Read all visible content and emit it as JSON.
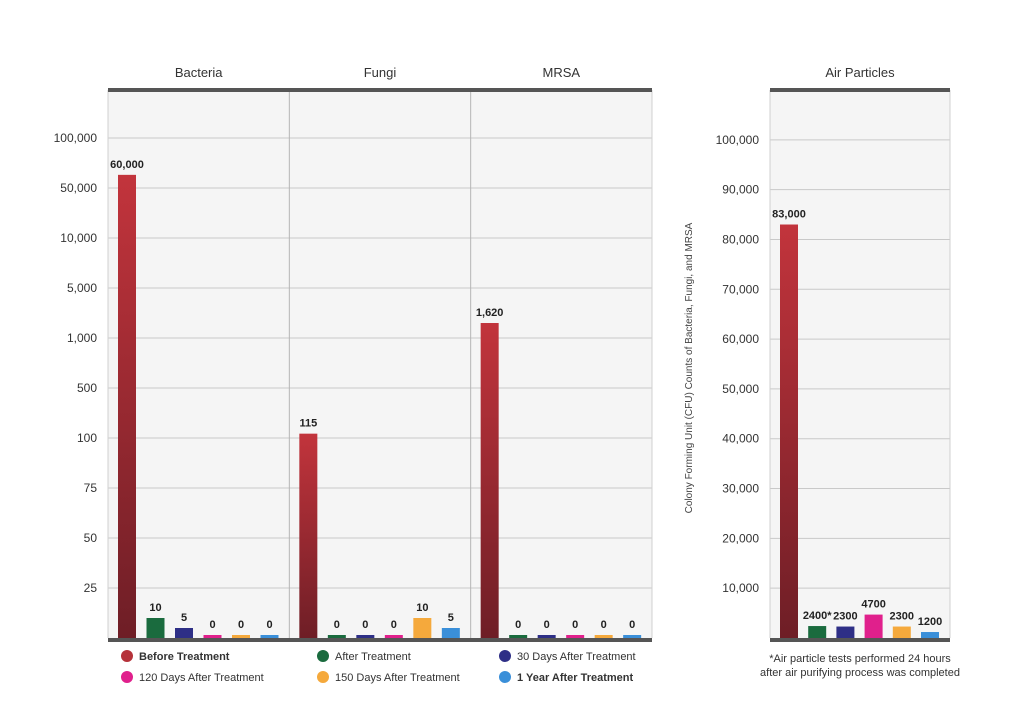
{
  "chart_data": [
    {
      "type": "bar",
      "ylabel": "Colony Forming Unit (CFU) Counts of Bacteria, Fungi, and MRSA",
      "y_ticks": [
        "25",
        "50",
        "75",
        "100",
        "500",
        "1,000",
        "5,000",
        "10,000",
        "50,000",
        "100,000"
      ],
      "categories": [
        "Bacteria",
        "Fungi",
        "MRSA"
      ],
      "series": [
        {
          "name": "Before Treatment",
          "values": [
            60000,
            115,
            1620
          ],
          "labels": [
            "60,000",
            "115",
            "1,620"
          ],
          "color": "#b5323a"
        },
        {
          "name": "After Treatment",
          "values": [
            10,
            0,
            0
          ],
          "labels": [
            "10",
            "0",
            "0"
          ],
          "color": "#1a6b3e"
        },
        {
          "name": "30 Days After Treatment",
          "values": [
            5,
            0,
            0
          ],
          "labels": [
            "5",
            "0",
            "0"
          ],
          "color": "#2e2f86"
        },
        {
          "name": "120 Days After Treatment",
          "values": [
            0,
            0,
            0
          ],
          "labels": [
            "0",
            "0",
            "0"
          ],
          "color": "#e0208c"
        },
        {
          "name": "150 Days After Treatment",
          "values": [
            0,
            10,
            0
          ],
          "labels": [
            "0",
            "10",
            "0"
          ],
          "color": "#f5a93c"
        },
        {
          "name": "1 Year After Treatment",
          "values": [
            0,
            5,
            0
          ],
          "labels": [
            "0",
            "5",
            "0"
          ],
          "color": "#3a8fd9"
        }
      ],
      "grid": true
    },
    {
      "type": "bar",
      "title": "Air Particles",
      "ylim": [
        0,
        110000
      ],
      "y_ticks": [
        "10,000",
        "20,000",
        "30,000",
        "40,000",
        "50,000",
        "60,000",
        "70,000",
        "80,000",
        "90,000",
        "100,000"
      ],
      "values": [
        83000,
        2400,
        2300,
        4700,
        2300,
        1200
      ],
      "labels": [
        "83,000",
        "2400*",
        "2300",
        "4700",
        "2300",
        "1200"
      ],
      "colors": [
        "#b5323a",
        "#1a6b3e",
        "#2e2f86",
        "#e0208c",
        "#f5a93c",
        "#3a8fd9"
      ],
      "note_lines": [
        "*Air particle tests performed 24 hours",
        "after air purifying process was completed"
      ],
      "grid": true
    }
  ],
  "legend": [
    {
      "label": "Before Treatment",
      "color": "#b5323a",
      "bold": true
    },
    {
      "label": "After Treatment",
      "color": "#1a6b3e",
      "bold": false
    },
    {
      "label": "30 Days After Treatment",
      "color": "#2e2f86",
      "bold": false
    },
    {
      "label": "120 Days After Treatment",
      "color": "#e0208c",
      "bold": false
    },
    {
      "label": "150 Days After Treatment",
      "color": "#f5a93c",
      "bold": false
    },
    {
      "label": "1 Year After Treatment",
      "color": "#3a8fd9",
      "bold": true
    }
  ]
}
